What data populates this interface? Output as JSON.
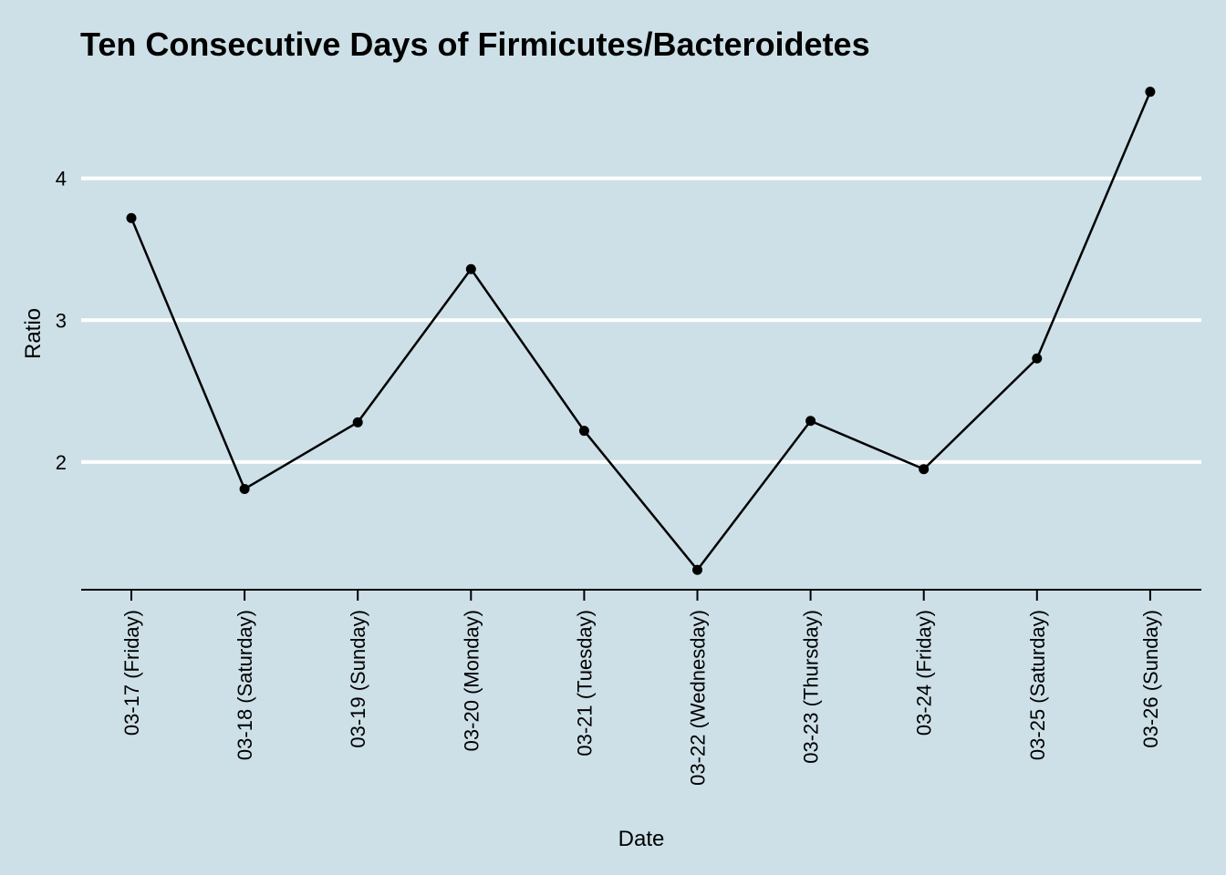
{
  "chart_data": {
    "type": "line",
    "title": "Ten Consecutive Days of Firmicutes/Bacteroidetes",
    "xlabel": "Date",
    "ylabel": "Ratio",
    "categories": [
      "03-17 (Friday)",
      "03-18 (Saturday)",
      "03-19 (Sunday)",
      "03-20 (Monday)",
      "03-21 (Tuesday)",
      "03-22 (Wednesday)",
      "03-23 (Thursday)",
      "03-24 (Friday)",
      "03-25 (Saturday)",
      "03-26 (Sunday)"
    ],
    "values": [
      3.72,
      1.81,
      2.28,
      3.36,
      2.22,
      1.24,
      2.29,
      1.95,
      2.73,
      4.61
    ],
    "yticks": [
      2,
      3,
      4
    ],
    "ylim": [
      1.1,
      4.73
    ],
    "grid": "horizontal major",
    "colors": {
      "background": "#cde0e7",
      "grid": "#ffffff",
      "line": "#000000"
    }
  }
}
